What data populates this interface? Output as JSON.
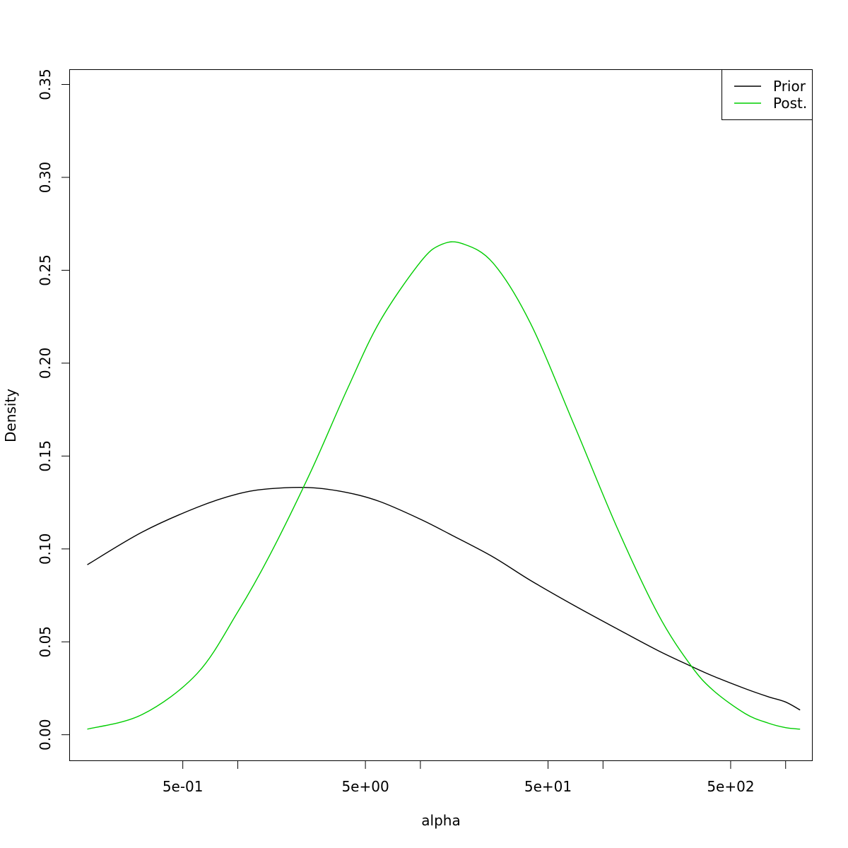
{
  "chart_data": {
    "type": "line",
    "xlabel": "alpha",
    "ylabel": "Density",
    "x_scale": "log",
    "xlim": [
      0.12,
      1400
    ],
    "ylim": [
      -0.014,
      0.358
    ],
    "x_ticks": [
      {
        "value": 0.5,
        "label": "5e-01"
      },
      {
        "value": 1,
        "label": ""
      },
      {
        "value": 5,
        "label": "5e+00"
      },
      {
        "value": 10,
        "label": ""
      },
      {
        "value": 50,
        "label": "5e+01"
      },
      {
        "value": 100,
        "label": ""
      },
      {
        "value": 500,
        "label": "5e+02"
      },
      {
        "value": 1000,
        "label": ""
      }
    ],
    "y_ticks": [
      {
        "value": 0.0,
        "label": "0.00"
      },
      {
        "value": 0.05,
        "label": "0.05"
      },
      {
        "value": 0.1,
        "label": "0.10"
      },
      {
        "value": 0.15,
        "label": "0.15"
      },
      {
        "value": 0.2,
        "label": "0.20"
      },
      {
        "value": 0.25,
        "label": "0.25"
      },
      {
        "value": 0.3,
        "label": "0.30"
      },
      {
        "value": 0.35,
        "label": "0.35"
      }
    ],
    "legend_position": "top-right",
    "grid": false,
    "series": [
      {
        "name": "Prior",
        "color": "#000000",
        "x": [
          0.15,
          0.3,
          0.6,
          1.0,
          1.5,
          2.5,
          4.0,
          6.0,
          10,
          15,
          25,
          40,
          70,
          120,
          200,
          300,
          400,
          600,
          800,
          1000,
          1200
        ],
        "y": [
          0.0915,
          0.1091,
          0.1224,
          0.1296,
          0.1324,
          0.133,
          0.1303,
          0.1255,
          0.116,
          0.1072,
          0.0957,
          0.0831,
          0.0694,
          0.0569,
          0.0453,
          0.0371,
          0.0316,
          0.0248,
          0.0205,
          0.0176,
          0.0133
        ]
      },
      {
        "name": "Post.",
        "color": "#00cd00",
        "x": [
          0.15,
          0.3,
          0.6,
          1.0,
          1.5,
          2.5,
          4.0,
          6.0,
          10,
          13,
          17,
          25,
          40,
          70,
          120,
          200,
          300,
          400,
          600,
          800,
          1000,
          1200
        ],
        "y": [
          0.003,
          0.0109,
          0.033,
          0.0661,
          0.0968,
          0.1412,
          0.1865,
          0.2225,
          0.2544,
          0.2638,
          0.2643,
          0.2539,
          0.2216,
          0.166,
          0.111,
          0.065,
          0.0378,
          0.024,
          0.0114,
          0.0063,
          0.0038,
          0.003
        ]
      }
    ]
  }
}
